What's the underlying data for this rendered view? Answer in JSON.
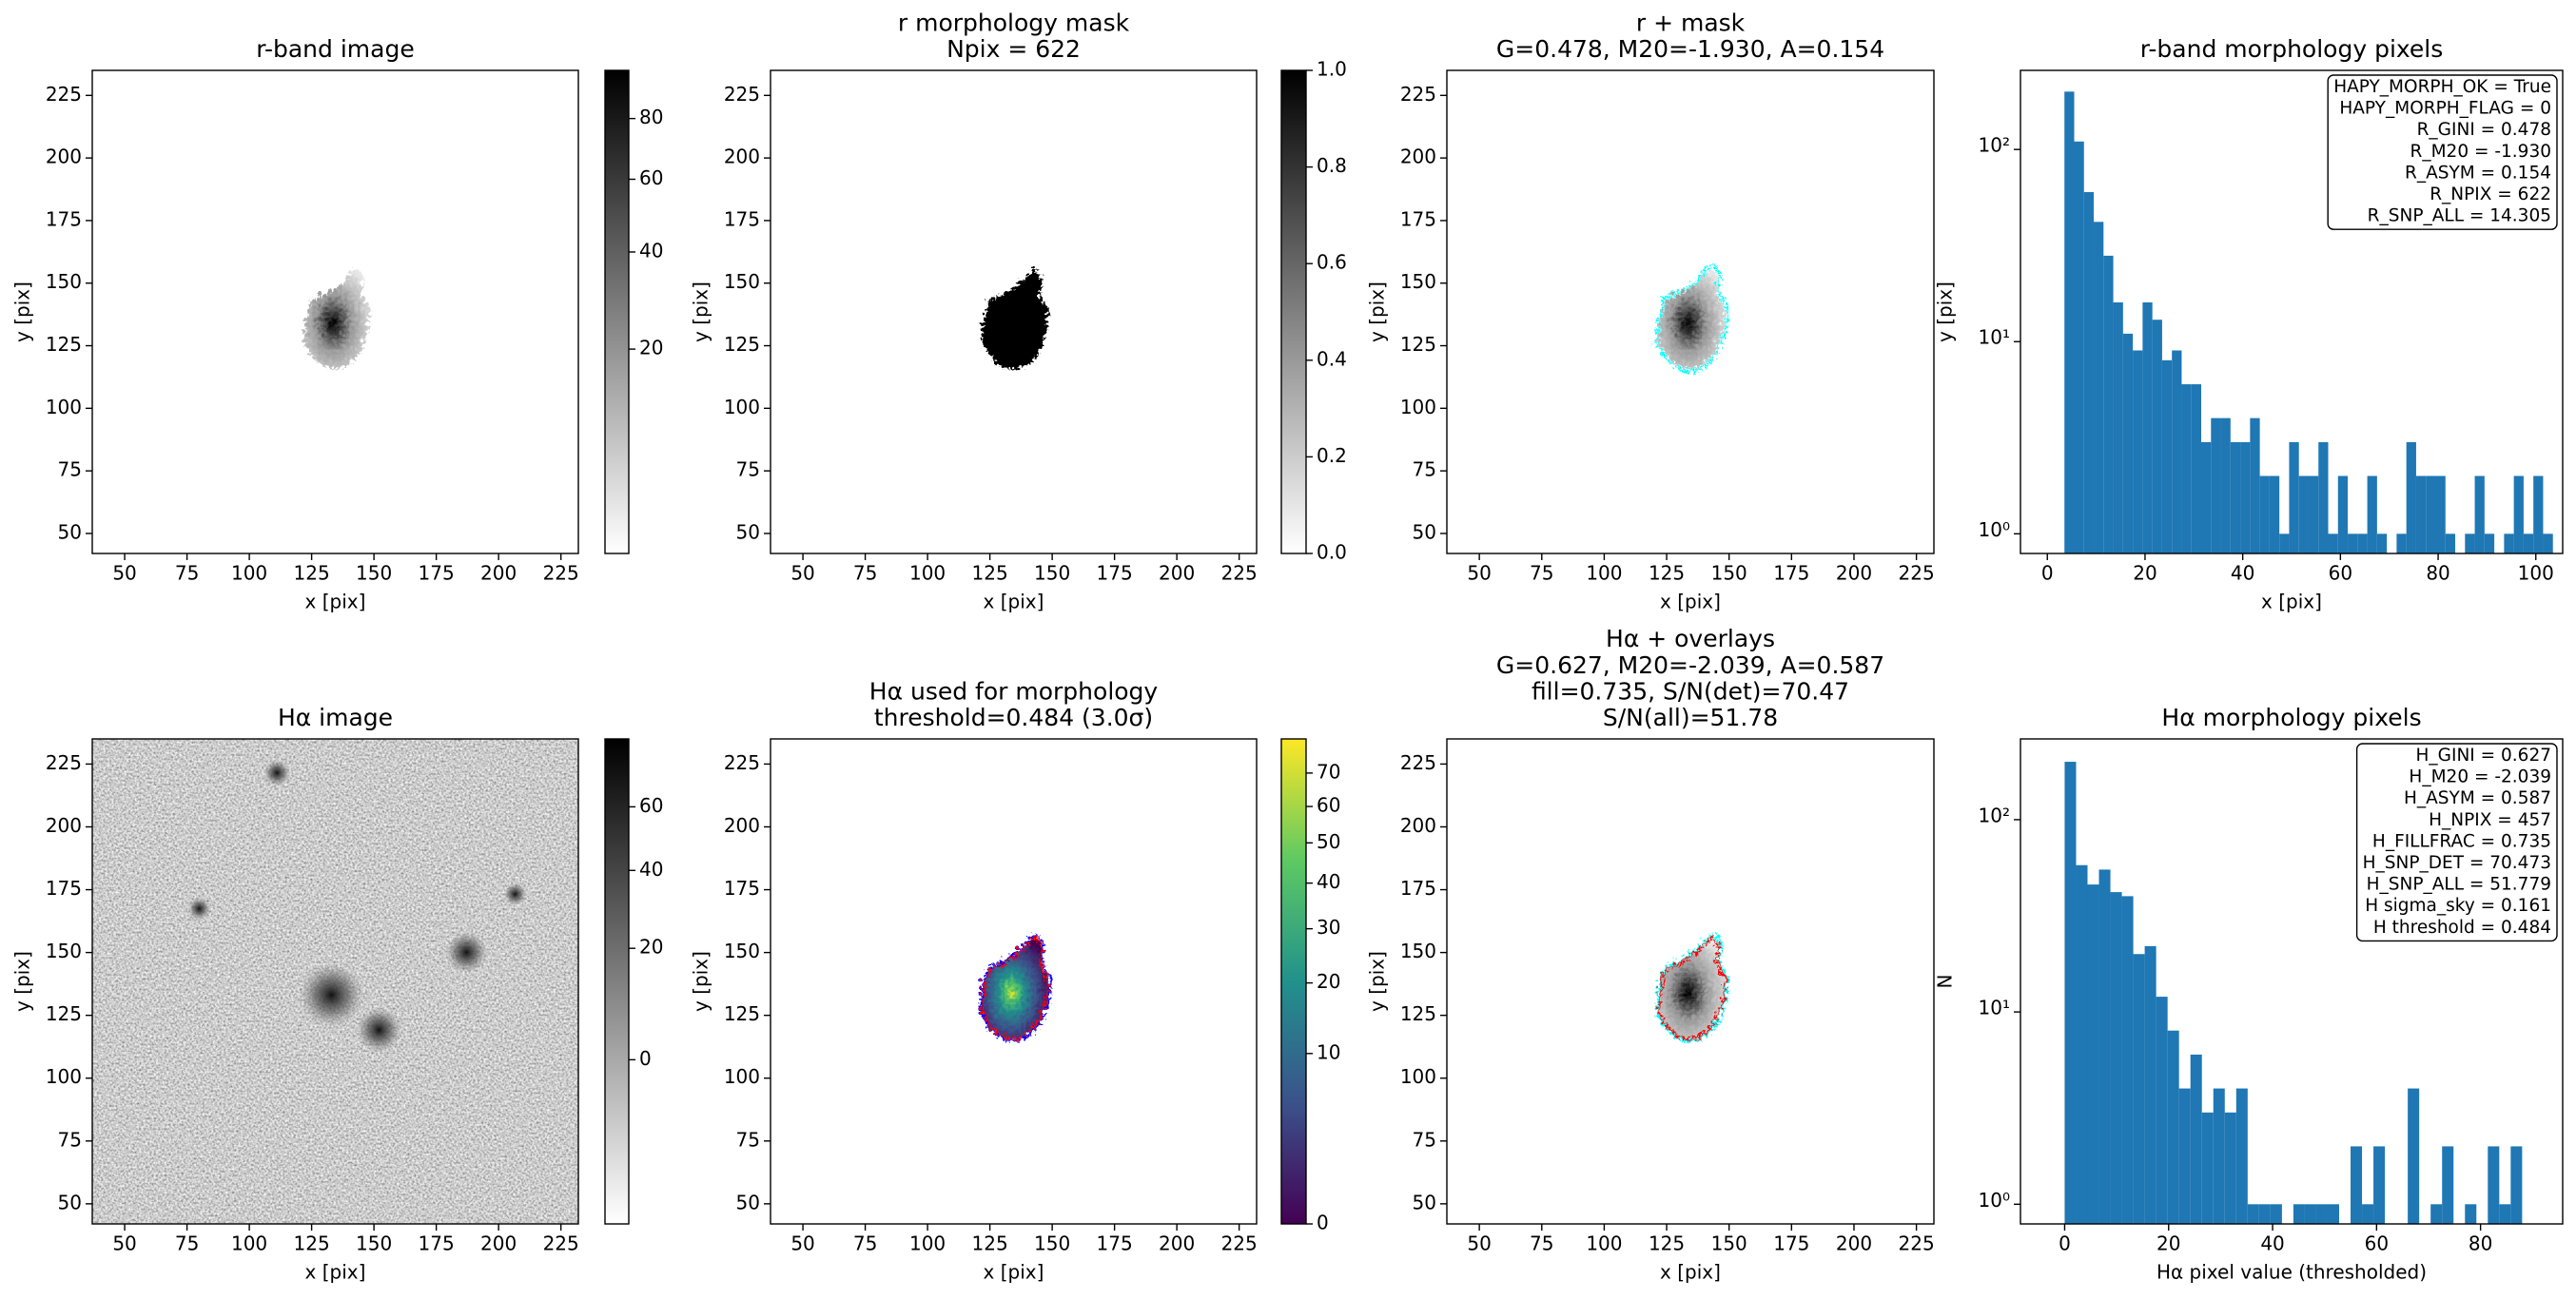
{
  "chart_data": [
    {
      "type": "image",
      "title": "r-band image",
      "xlabel": "x [pix]",
      "ylabel": "y [pix]",
      "xlim": [
        37,
        232
      ],
      "ylim": [
        42,
        235
      ],
      "xticks": [
        50,
        75,
        100,
        125,
        150,
        175,
        200,
        225
      ],
      "yticks": [
        50,
        75,
        100,
        125,
        150,
        175,
        200,
        225
      ],
      "cmap": "gray_r",
      "colorbar": {
        "clim": [
          3,
          98
        ],
        "stretch": "sqrt",
        "ticks": [
          20,
          40,
          60,
          80
        ]
      }
    },
    {
      "type": "image",
      "title": [
        "r morphology mask",
        "Npix = 622"
      ],
      "xlabel": "x [pix]",
      "ylabel": "y [pix]",
      "xlim": [
        37,
        232
      ],
      "ylim": [
        42,
        235
      ],
      "xticks": [
        50,
        75,
        100,
        125,
        150,
        175,
        200,
        225
      ],
      "yticks": [
        50,
        75,
        100,
        125,
        150,
        175,
        200,
        225
      ],
      "cmap": "gray_r",
      "mask": true,
      "colorbar": {
        "clim": [
          0,
          1
        ],
        "stretch": "linear",
        "ticks": [
          {
            "value": 0,
            "label": "0.0"
          },
          {
            "value": 0.2,
            "label": "0.2"
          },
          {
            "value": 0.4,
            "label": "0.4"
          },
          {
            "value": 0.6,
            "label": "0.6"
          },
          {
            "value": 0.8,
            "label": "0.8"
          },
          {
            "value": 1,
            "label": "1.0"
          }
        ]
      }
    },
    {
      "type": "image",
      "title": [
        "r + mask",
        "G=0.478, M20=-1.930, A=0.154"
      ],
      "xlabel": "x [pix]",
      "ylabel": "y [pix]",
      "xlim": [
        37,
        232
      ],
      "ylim": [
        42,
        235
      ],
      "xticks": [
        50,
        75,
        100,
        125,
        150,
        175,
        200,
        225
      ],
      "yticks": [
        50,
        75,
        100,
        125,
        150,
        175,
        200,
        225
      ],
      "cmap": "gray_r",
      "overlay_colors": [
        "#00ffff"
      ]
    },
    {
      "type": "histogram",
      "title": "r-band morphology pixels",
      "xlabel": "x [pix]",
      "ylabel": "y [pix]",
      "color": "#1f77b4",
      "bins": [
        3.5,
        5.5,
        7.5,
        9.5,
        11.5,
        13.5,
        15.5,
        17.5,
        19.5,
        21.5,
        23.5,
        25.5,
        27.5,
        29.5,
        31.5,
        33.5,
        35.5,
        37.5,
        39.5,
        41.5,
        43.5,
        45.5,
        47.5,
        49.5,
        51.5,
        53.5,
        55.5,
        57.5,
        59.5,
        61.5,
        63.5,
        65.5,
        67.5,
        69.5,
        71.5,
        73.5,
        75.5,
        77.5,
        79.5,
        81.5,
        83.5,
        85.5,
        87.5,
        89.5,
        91.5,
        93.5,
        95.5,
        97.5,
        99.5,
        101.5,
        103.5
      ],
      "counts": [
        200,
        110,
        60,
        42,
        28,
        16,
        11,
        9,
        16,
        13,
        8,
        9,
        6,
        6,
        3,
        4,
        4,
        3,
        3,
        4,
        2,
        2,
        1,
        3,
        2,
        2,
        3,
        1,
        2,
        1,
        1,
        2,
        1,
        0,
        1,
        3,
        2,
        2,
        2,
        1,
        0,
        1,
        2,
        1,
        0,
        1,
        2,
        1,
        2,
        1
      ],
      "xlim": [
        -5.5,
        105.5
      ],
      "xticks": [
        0,
        20,
        40,
        60,
        80,
        100
      ],
      "ylim": [
        0.79,
        258
      ],
      "log_y": true,
      "yticks": [
        {
          "value": 1,
          "label": "10⁰"
        },
        {
          "value": 10,
          "label": "10¹"
        },
        {
          "value": 100,
          "label": "10²"
        }
      ],
      "annotation": [
        "HAPY_MORPH_OK = True",
        "HAPY_MORPH_FLAG = 0",
        "R_GINI = 0.478",
        "R_M20 = -1.930",
        "R_ASYM = 0.154",
        "R_NPIX = 622",
        "R_SNP_ALL = 14.305"
      ]
    },
    {
      "type": "image",
      "title": "Hα image",
      "xlabel": "x [pix]",
      "ylabel": "y [pix]",
      "xlim": [
        37,
        232
      ],
      "ylim": [
        42,
        235
      ],
      "xticks": [
        50,
        75,
        100,
        125,
        150,
        175,
        200,
        225
      ],
      "yticks": [
        50,
        75,
        100,
        125,
        150,
        175,
        200,
        225
      ],
      "cmap": "gray_r",
      "noise": true,
      "colorbar": {
        "clim": [
          -11,
          85
        ],
        "stretch": "sqrt",
        "ticks": [
          0,
          20,
          40,
          60
        ]
      }
    },
    {
      "type": "image",
      "title": [
        "Hα used for morphology",
        "threshold=0.484 (3.0σ)"
      ],
      "xlabel": "x [pix]",
      "ylabel": "y [pix]",
      "xlim": [
        37,
        232
      ],
      "ylim": [
        42,
        235
      ],
      "xticks": [
        50,
        75,
        100,
        125,
        150,
        175,
        200,
        225
      ],
      "yticks": [
        50,
        75,
        100,
        125,
        150,
        175,
        200,
        225
      ],
      "cmap": "viridis",
      "overlay_colors": [
        "#0000ff",
        "#ff0000"
      ],
      "colorbar": {
        "clim": [
          0,
          81
        ],
        "stretch": "sqrt",
        "ticks": [
          0,
          10,
          20,
          30,
          40,
          50,
          60,
          70
        ]
      }
    },
    {
      "type": "image",
      "title": [
        "Hα + overlays",
        "G=0.627, M20=-2.039, A=0.587",
        "fill=0.735, S/N(det)=70.47",
        "S/N(all)=51.78"
      ],
      "xlabel": "x [pix]",
      "ylabel": "y [pix]",
      "xlim": [
        37,
        232
      ],
      "ylim": [
        42,
        235
      ],
      "xticks": [
        50,
        75,
        100,
        125,
        150,
        175,
        200,
        225
      ],
      "yticks": [
        50,
        75,
        100,
        125,
        150,
        175,
        200,
        225
      ],
      "cmap": "gray_r",
      "overlay_colors": [
        "#00ffff",
        "#ff0000"
      ]
    },
    {
      "type": "histogram",
      "title": "Hα morphology pixels",
      "xlabel": "Hα pixel value (thresholded)",
      "ylabel": "N",
      "color": "#1f77b4",
      "bins": [
        0,
        2.2,
        4.4,
        6.6,
        8.8,
        11,
        13.2,
        15.4,
        17.6,
        19.8,
        22,
        24.2,
        26.4,
        28.6,
        30.8,
        33,
        35.2,
        37.4,
        39.6,
        41.8,
        44,
        46.2,
        48.4,
        50.6,
        52.8,
        55,
        57.2,
        59.4,
        61.6,
        63.8,
        66,
        68.2,
        70.4,
        72.6,
        74.8,
        77,
        79.2,
        81.4,
        83.6,
        85.8,
        88
      ],
      "counts": [
        200,
        58,
        46,
        55,
        42,
        40,
        20,
        22,
        12,
        8,
        4,
        6,
        3,
        4,
        3,
        4,
        1,
        1,
        1,
        0,
        1,
        1,
        1,
        1,
        0,
        2,
        1,
        2,
        0,
        0,
        4,
        0,
        1,
        2,
        0,
        1,
        0,
        2,
        1,
        2
      ],
      "xlim": [
        -8.5,
        95.8
      ],
      "xticks": [
        0,
        20,
        40,
        60,
        80
      ],
      "ylim": [
        0.79,
        263
      ],
      "log_y": true,
      "yticks": [
        {
          "value": 1,
          "label": "10⁰"
        },
        {
          "value": 10,
          "label": "10¹"
        },
        {
          "value": 100,
          "label": "10²"
        }
      ],
      "annotation": [
        "H_GINI = 0.627",
        "H_M20 = -2.039",
        "H_ASYM = 0.587",
        "H_NPIX = 457",
        "H_FILLFRAC = 0.735",
        "H_SNP_DET = 70.473",
        "H_SNP_ALL = 51.779",
        "H sigma_sky = 0.161",
        "H threshold = 0.484"
      ]
    }
  ]
}
